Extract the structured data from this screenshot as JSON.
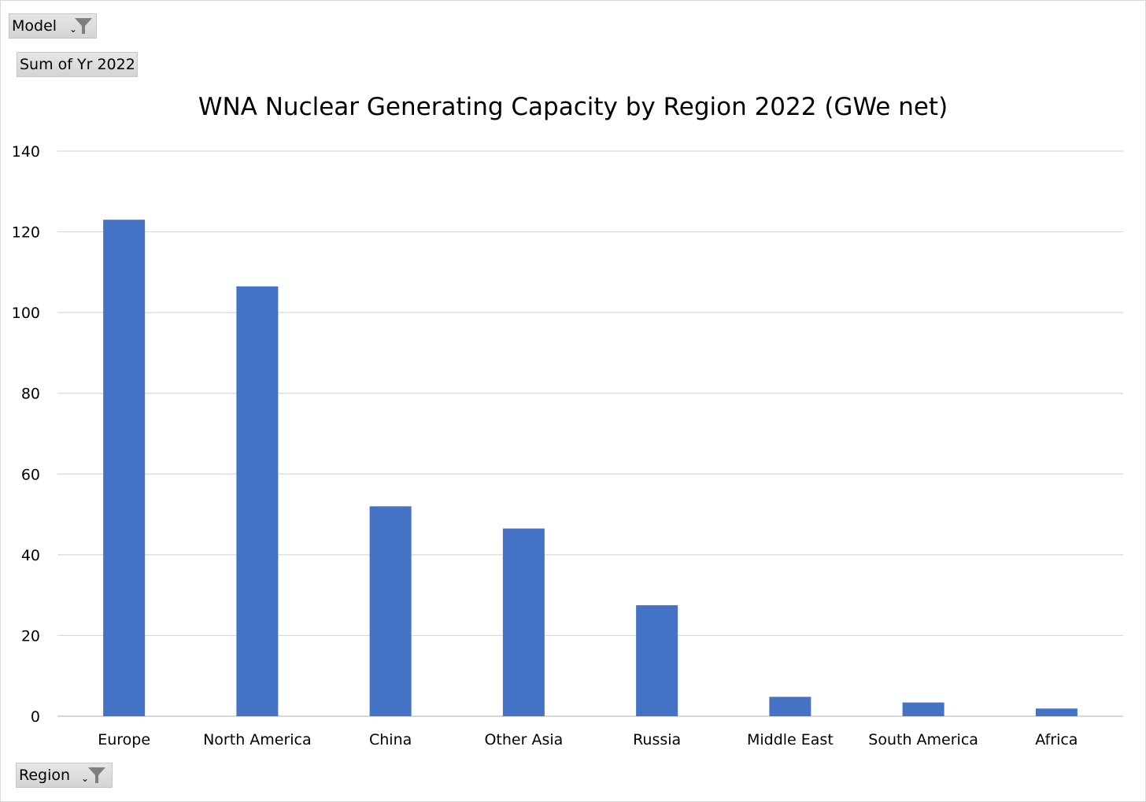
{
  "filters": {
    "model_label": "Model",
    "values_label": "Sum of Yr 2022",
    "region_label": "Region"
  },
  "icons": {
    "filter": "filter-funnel-icon",
    "dropdown": "dropdown-arrow-icon"
  },
  "colors": {
    "bar": "#4472c4",
    "gridline": "#d9d9d9",
    "axis": "#bfbfbf"
  },
  "chart_data": {
    "type": "bar",
    "title": "WNA Nuclear Generating Capacity by Region 2022 (GWe net)",
    "xlabel": "",
    "ylabel": "",
    "categories": [
      "Europe",
      "North America",
      "China",
      "Other Asia",
      "Russia",
      "Middle East",
      "South America",
      "Africa"
    ],
    "values": [
      123,
      106.5,
      52,
      46.5,
      27.5,
      4.8,
      3.4,
      1.9
    ],
    "ylim": [
      0,
      140
    ],
    "yticks": [
      0,
      20,
      40,
      60,
      80,
      100,
      120,
      140
    ],
    "grid": true,
    "legend": "none"
  }
}
